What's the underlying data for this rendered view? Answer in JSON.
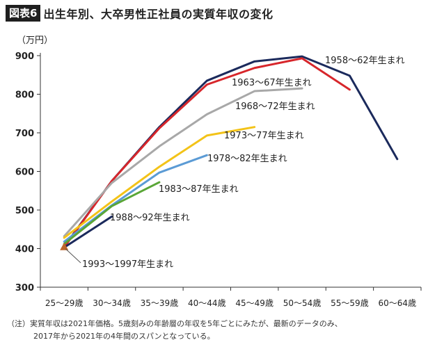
{
  "header": {
    "figure_label": "図表6",
    "title": "出生年別、大卒男性正社員の実質年収の変化"
  },
  "chart_data": {
    "type": "line",
    "title": "出生年別、大卒男性正社員の実質年収の変化",
    "ylabel": "（万円）",
    "xlabel": "",
    "ylim": [
      300,
      900
    ],
    "yticks": [
      "300",
      "400",
      "500",
      "600",
      "700",
      "800",
      "900"
    ],
    "categories": [
      "25～29歳",
      "30～34歳",
      "35～39歳",
      "40～44歳",
      "45～49歳",
      "50～54歳",
      "55～59歳",
      "60～64歳"
    ],
    "grid": false,
    "legend": "inline labels",
    "series": [
      {
        "name": "1958～62年生まれ",
        "color": "#1b2a5c",
        "values": [
          405,
          575,
          715,
          835,
          885,
          898,
          848,
          632
        ]
      },
      {
        "name": "1963～67年生まれ",
        "color": "#d7262b",
        "values": [
          403,
          575,
          712,
          825,
          868,
          893,
          812,
          null
        ]
      },
      {
        "name": "1968～72年生まれ",
        "color": "#a8a8a8",
        "values": [
          432,
          570,
          665,
          748,
          808,
          815,
          null,
          null
        ]
      },
      {
        "name": "1973～77年生まれ",
        "color": "#f3c318",
        "values": [
          428,
          522,
          612,
          693,
          715,
          null,
          null,
          null
        ]
      },
      {
        "name": "1978～82年生まれ",
        "color": "#5b9bd5",
        "values": [
          418,
          512,
          597,
          642,
          null,
          null,
          null,
          null
        ]
      },
      {
        "name": "1983～87年生まれ",
        "color": "#5aa637",
        "values": [
          412,
          510,
          572,
          null,
          null,
          null,
          null,
          null
        ]
      },
      {
        "name": "1988～92年生まれ",
        "color": "#1b2a5c",
        "values": [
          403,
          483,
          null,
          null,
          null,
          null,
          null,
          null
        ]
      },
      {
        "name": "1993～1997年生まれ",
        "color": "#c0652a",
        "values": [
          405,
          null,
          null,
          null,
          null,
          null,
          null,
          null
        ]
      }
    ]
  },
  "note": {
    "line1": "（注）実質年収は2021年価格。5歳刻みの年齢層の年収を5年ごとにみたが、最新のデータのみ、",
    "line2": "2017年から2021年の4年間のスパンとなっている。"
  }
}
